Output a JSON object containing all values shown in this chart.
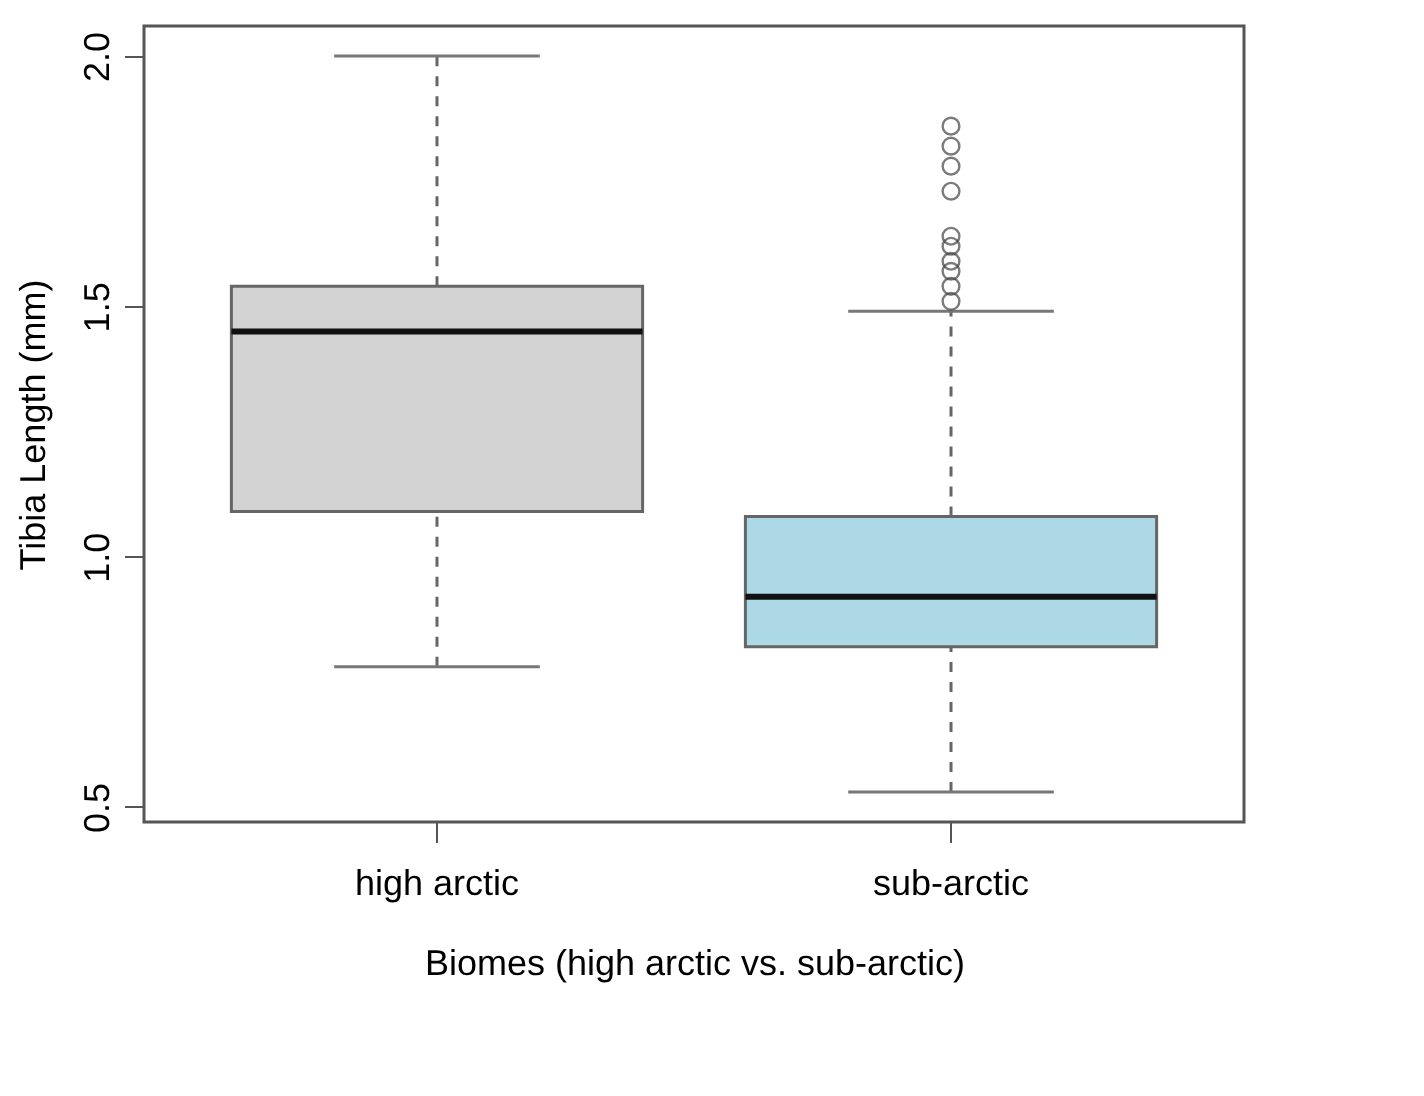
{
  "chart_data": {
    "type": "box",
    "xlabel": "Biomes (high arctic vs. sub-arctic)",
    "ylabel": "Tibia Length (mm)",
    "categories": [
      "high arctic",
      "sub-arctic"
    ],
    "colors": [
      "#d3d3d3",
      "#add8e6"
    ],
    "boxes": [
      {
        "low": 0.78,
        "q1": 1.09,
        "median": 1.45,
        "q3": 1.54,
        "high": 2.0
      },
      {
        "low": 0.53,
        "q1": 0.82,
        "median": 0.92,
        "q3": 1.08,
        "high": 1.49,
        "outliers": [
          1.51,
          1.54,
          1.57,
          1.59,
          1.62,
          1.64,
          1.73,
          1.78,
          1.82,
          1.86
        ]
      }
    ],
    "ylim": [
      0.47,
      2.06
    ],
    "yticks": [
      0.5,
      {
        "value": 1.0,
        "label": "1.0"
      },
      1.5,
      {
        "value": 2.0,
        "label": "2.0"
      }
    ],
    "grid": false
  }
}
